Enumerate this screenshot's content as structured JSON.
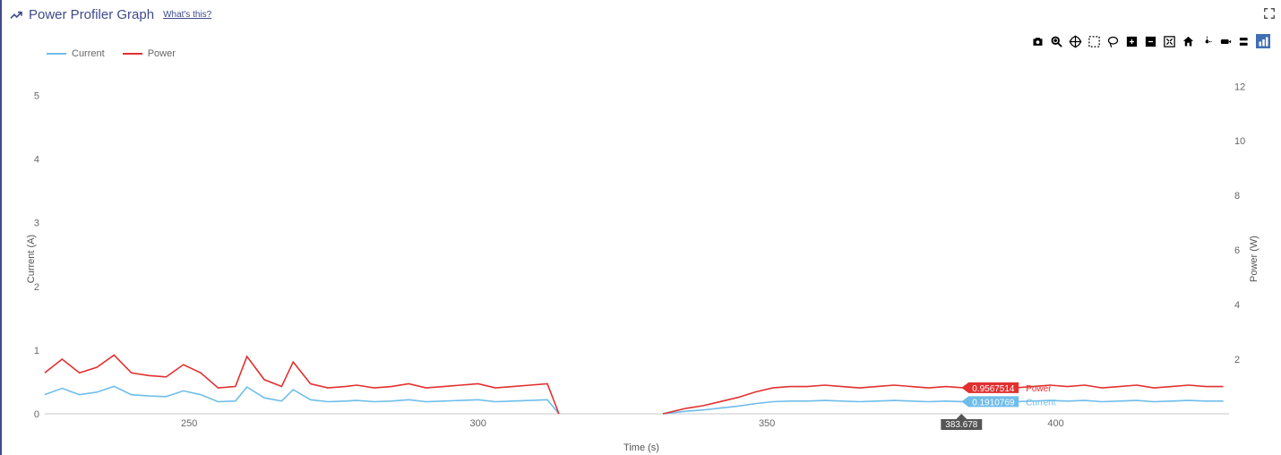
{
  "header": {
    "title": "Power Profiler Graph",
    "whats_this": "What's this?"
  },
  "legend": {
    "items": [
      {
        "label": "Current",
        "color": "#6fbde9"
      },
      {
        "label": "Power",
        "color": "#e23030"
      }
    ]
  },
  "axes": {
    "x": {
      "label": "Time (s)",
      "min": 225,
      "max": 430,
      "ticks": [
        250,
        300,
        350,
        400
      ]
    },
    "y_left": {
      "label": "Current (A)",
      "min": 0,
      "max": 5.4,
      "ticks": [
        0,
        1,
        2,
        3,
        4,
        5
      ]
    },
    "y_right": {
      "label": "Power (W)",
      "min": 0,
      "max": 12.6,
      "ticks": [
        2,
        4,
        6,
        8,
        10,
        12
      ]
    }
  },
  "colors": {
    "current": "#6fbde9",
    "power": "#e23030",
    "zeroline": "#c8c8c8",
    "title": "#3f4a8a",
    "tick": "#666666",
    "panel_bg": "#ffffff",
    "cursor_box_bg": "#555555",
    "cursor_box_text": "#ffffff",
    "badge_current_bg": "#6fbde9",
    "badge_power_bg": "#e23030",
    "active_tool": "#3f6fb5"
  },
  "series": {
    "current": {
      "axis": "left",
      "color": "#6fbde9",
      "values": [
        [
          225,
          0.3
        ],
        [
          228,
          0.4
        ],
        [
          231,
          0.3
        ],
        [
          234,
          0.34
        ],
        [
          237,
          0.43
        ],
        [
          240,
          0.3
        ],
        [
          243,
          0.28
        ],
        [
          246,
          0.27
        ],
        [
          249,
          0.36
        ],
        [
          252,
          0.3
        ],
        [
          255,
          0.19
        ],
        [
          258,
          0.2
        ],
        [
          260,
          0.42
        ],
        [
          263,
          0.25
        ],
        [
          266,
          0.2
        ],
        [
          268,
          0.38
        ],
        [
          271,
          0.22
        ],
        [
          274,
          0.19
        ],
        [
          277,
          0.2
        ],
        [
          279,
          0.21
        ],
        [
          282,
          0.19
        ],
        [
          285,
          0.2
        ],
        [
          288,
          0.22
        ],
        [
          291,
          0.19
        ],
        [
          294,
          0.2
        ],
        [
          297,
          0.21
        ],
        [
          300,
          0.22
        ],
        [
          303,
          0.19
        ],
        [
          306,
          0.2
        ],
        [
          309,
          0.21
        ],
        [
          312,
          0.22
        ],
        [
          314,
          0.0
        ],
        [
          332,
          0.0
        ],
        [
          336,
          0.04
        ],
        [
          339,
          0.06
        ],
        [
          342,
          0.09
        ],
        [
          345,
          0.12
        ],
        [
          348,
          0.16
        ],
        [
          351,
          0.19
        ],
        [
          354,
          0.2
        ],
        [
          357,
          0.2
        ],
        [
          360,
          0.21
        ],
        [
          363,
          0.2
        ],
        [
          366,
          0.19
        ],
        [
          369,
          0.2
        ],
        [
          372,
          0.21
        ],
        [
          375,
          0.2
        ],
        [
          378,
          0.19
        ],
        [
          381,
          0.2
        ],
        [
          383.678,
          0.1910769
        ],
        [
          387,
          0.2
        ],
        [
          390,
          0.21
        ],
        [
          393,
          0.19
        ],
        [
          396,
          0.2
        ],
        [
          399,
          0.21
        ],
        [
          402,
          0.2
        ],
        [
          405,
          0.21
        ],
        [
          408,
          0.19
        ],
        [
          411,
          0.2
        ],
        [
          414,
          0.21
        ],
        [
          417,
          0.19
        ],
        [
          420,
          0.2
        ],
        [
          423,
          0.21
        ],
        [
          426,
          0.2
        ],
        [
          429,
          0.2
        ]
      ]
    },
    "power": {
      "axis": "right",
      "color": "#e23030",
      "values": [
        [
          225,
          1.5
        ],
        [
          228,
          2.0
        ],
        [
          231,
          1.5
        ],
        [
          234,
          1.7
        ],
        [
          237,
          2.15
        ],
        [
          240,
          1.5
        ],
        [
          243,
          1.4
        ],
        [
          246,
          1.35
        ],
        [
          249,
          1.8
        ],
        [
          252,
          1.5
        ],
        [
          255,
          0.95
        ],
        [
          258,
          1.0
        ],
        [
          260,
          2.1
        ],
        [
          263,
          1.25
        ],
        [
          266,
          1.0
        ],
        [
          268,
          1.9
        ],
        [
          271,
          1.1
        ],
        [
          274,
          0.95
        ],
        [
          277,
          1.0
        ],
        [
          279,
          1.05
        ],
        [
          282,
          0.95
        ],
        [
          285,
          1.0
        ],
        [
          288,
          1.1
        ],
        [
          291,
          0.95
        ],
        [
          294,
          1.0
        ],
        [
          297,
          1.05
        ],
        [
          300,
          1.1
        ],
        [
          303,
          0.95
        ],
        [
          306,
          1.0
        ],
        [
          309,
          1.05
        ],
        [
          312,
          1.1
        ],
        [
          314,
          0.0
        ],
        [
          332,
          0.0
        ],
        [
          336,
          0.2
        ],
        [
          339,
          0.3
        ],
        [
          342,
          0.45
        ],
        [
          345,
          0.6
        ],
        [
          348,
          0.8
        ],
        [
          351,
          0.95
        ],
        [
          354,
          1.0
        ],
        [
          357,
          1.0
        ],
        [
          360,
          1.05
        ],
        [
          363,
          1.0
        ],
        [
          366,
          0.95
        ],
        [
          369,
          1.0
        ],
        [
          372,
          1.05
        ],
        [
          375,
          1.0
        ],
        [
          378,
          0.95
        ],
        [
          381,
          1.0
        ],
        [
          383.678,
          0.9567514
        ],
        [
          387,
          1.0
        ],
        [
          390,
          1.05
        ],
        [
          393,
          0.95
        ],
        [
          396,
          1.0
        ],
        [
          399,
          1.05
        ],
        [
          402,
          1.0
        ],
        [
          405,
          1.05
        ],
        [
          408,
          0.95
        ],
        [
          411,
          1.0
        ],
        [
          414,
          1.05
        ],
        [
          417,
          0.95
        ],
        [
          420,
          1.0
        ],
        [
          423,
          1.05
        ],
        [
          426,
          1.0
        ],
        [
          429,
          1.0
        ]
      ]
    }
  },
  "cursor": {
    "x": 383.678,
    "x_label": "383.678",
    "badges": [
      {
        "series": "Power",
        "value": "0.9567514",
        "bg": "#e23030",
        "label_color": "#e23030"
      },
      {
        "series": "Current",
        "value": "0.1910769",
        "bg": "#6fbde9",
        "label_color": "#6fbde9"
      }
    ]
  },
  "toolbar": {
    "buttons": [
      {
        "name": "camera-icon",
        "active": false
      },
      {
        "name": "zoom-icon",
        "active": false
      },
      {
        "name": "pan-icon",
        "active": false
      },
      {
        "name": "box-select-icon",
        "active": false
      },
      {
        "name": "lasso-select-icon",
        "active": false
      },
      {
        "name": "zoom-in-icon",
        "active": false
      },
      {
        "name": "zoom-out-icon",
        "active": false
      },
      {
        "name": "autoscale-icon",
        "active": false
      },
      {
        "name": "home-icon",
        "active": false
      },
      {
        "name": "toggle-spikelines-icon",
        "active": false
      },
      {
        "name": "show-closest-icon",
        "active": false
      },
      {
        "name": "compare-hover-icon",
        "active": false
      },
      {
        "name": "chart-icon",
        "active": true
      }
    ]
  },
  "typography": {
    "title_fontsize": 15,
    "tick_fontsize": 11,
    "legend_fontsize": 11,
    "badge_fontsize": 10
  }
}
